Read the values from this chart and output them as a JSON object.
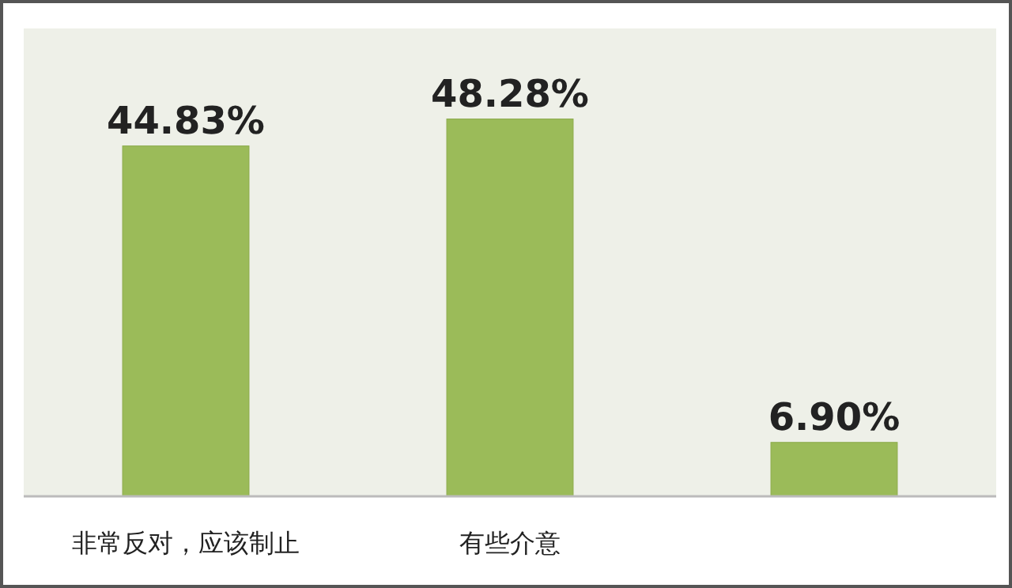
{
  "chart_data": {
    "type": "bar",
    "categories": [
      "非常反对，应该制止",
      "有些介意",
      null
    ],
    "values": [
      44.83,
      48.28,
      6.9
    ],
    "value_labels": [
      "44.83%",
      "48.28%",
      "6.90%"
    ],
    "color": "#9bbb59"
  }
}
